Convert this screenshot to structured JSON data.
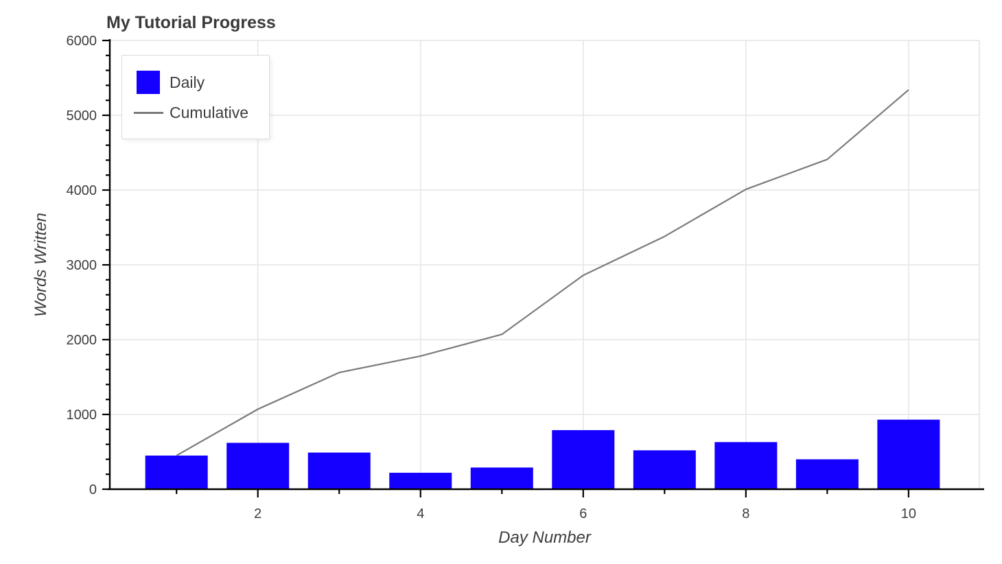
{
  "title": "My Tutorial Progress",
  "colors": {
    "bar_blue": "#1500ff",
    "line_gray": "#7a7a7a",
    "grid": "#e8e8e8",
    "axis": "#000000",
    "text": "#3d3d3d",
    "title_text": "#3a3a3a",
    "background": "#ffffff",
    "legend_border": "#dadada"
  },
  "legend": {
    "items": [
      {
        "label": "Daily",
        "marker": "blue-square"
      },
      {
        "label": "Cumulative",
        "marker": "gray-line"
      }
    ]
  },
  "chart_data": {
    "type": "combo-bar-line",
    "title": "My Tutorial Progress",
    "xlabel": "Day Number",
    "ylabel": "Words Written",
    "x": [
      1,
      2,
      3,
      4,
      5,
      6,
      7,
      8,
      9,
      10
    ],
    "series": [
      {
        "name": "Daily",
        "type": "bar",
        "color": "#1500ff",
        "values": [
          450,
          620,
          490,
          220,
          290,
          790,
          520,
          630,
          400,
          930
        ]
      },
      {
        "name": "Cumulative",
        "type": "line",
        "color": "#7a7a7a",
        "values": [
          450,
          1070,
          1560,
          1780,
          2070,
          2860,
          3380,
          4010,
          4410,
          5340
        ]
      }
    ],
    "xlim": [
      0.18,
      10.87
    ],
    "ylim": [
      0,
      6000
    ],
    "x_major_ticks": [
      2,
      4,
      6,
      8,
      10
    ],
    "x_tick_labels": [
      "2",
      "4",
      "6",
      "8",
      "10"
    ],
    "x_minor_ticks": [
      1,
      3,
      5,
      7,
      9
    ],
    "y_major_ticks": [
      0,
      1000,
      2000,
      3000,
      4000,
      5000,
      6000
    ],
    "y_tick_labels": [
      "0",
      "1000",
      "2000",
      "3000",
      "4000",
      "5000",
      "6000"
    ],
    "y_minor_step": 200,
    "grid": true,
    "legend_position": "upper-left",
    "bar_width_fraction": 0.768
  }
}
